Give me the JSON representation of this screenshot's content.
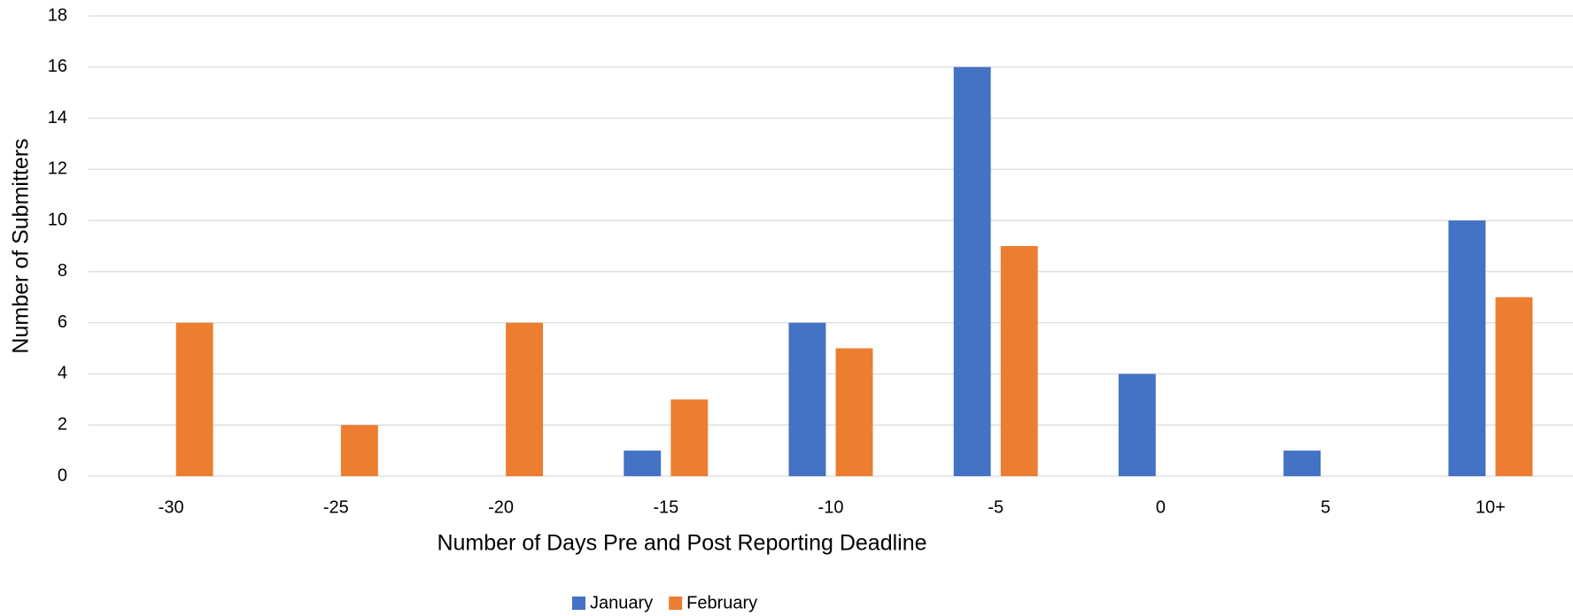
{
  "chart_data": {
    "type": "bar",
    "x_label": "Number of Days Pre and Post Reporting Deadline",
    "y_label": "Number of Submitters",
    "categories": [
      "-30",
      "-25",
      "-20",
      "-15",
      "-10",
      "-5",
      "0",
      "5",
      "10+"
    ],
    "series": [
      {
        "name": "January",
        "color": "#4472c4",
        "values": [
          0,
          0,
          0,
          1,
          6,
          16,
          4,
          1,
          10
        ]
      },
      {
        "name": "February",
        "color": "#ed7d31",
        "values": [
          6,
          2,
          6,
          3,
          5,
          9,
          0,
          0,
          7
        ]
      }
    ],
    "ylim": [
      0,
      18
    ],
    "yticks": [
      0,
      2,
      4,
      6,
      8,
      10,
      12,
      14,
      16,
      18
    ],
    "grid": true,
    "legend": "bottom"
  }
}
